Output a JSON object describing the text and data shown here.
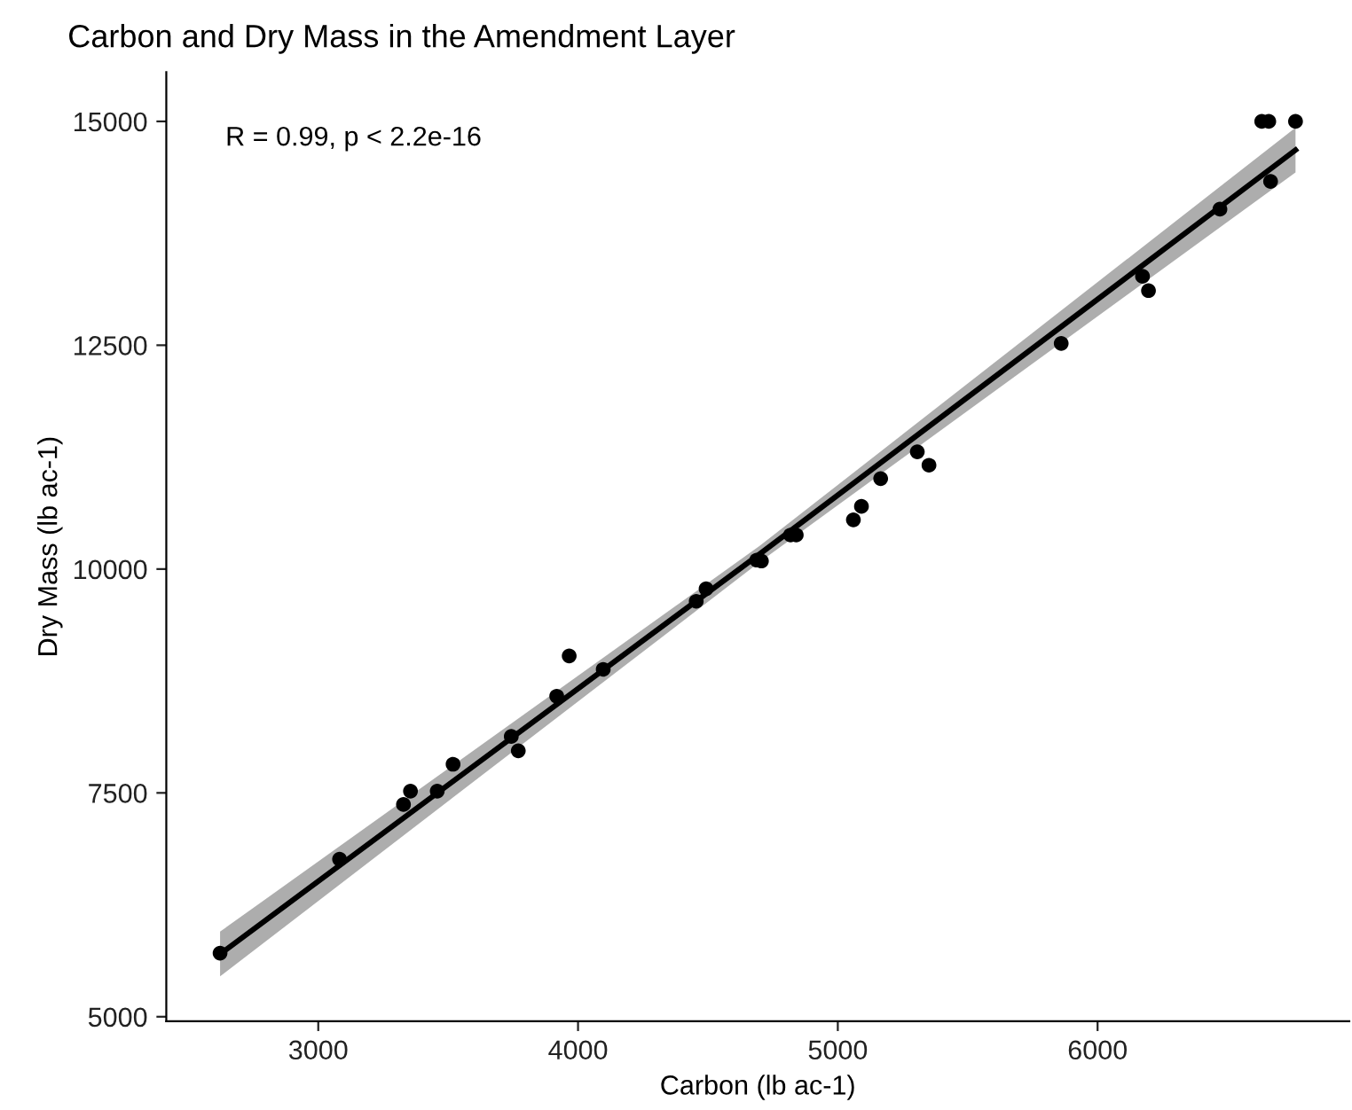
{
  "chart_data": {
    "type": "scatter",
    "title": "Carbon and Dry Mass in the Amendment Layer",
    "xlabel": "Carbon (lb ac-1)",
    "ylabel": "Dry Mass (lb ac-1)",
    "annotations": [
      "R = 0.99, p < 2.2e-16"
    ],
    "series": [
      {
        "color": "#000000",
        "marker": "circle",
        "x": [
          2622,
          3082,
          3328,
          3355,
          3458,
          3519,
          3770,
          3743,
          3918,
          3966,
          4097,
          4455,
          4493,
          4688,
          4706,
          4818,
          4840,
          5060,
          5091,
          5165,
          5306,
          5351,
          5860,
          6173,
          6196,
          6471,
          6666,
          6632,
          6659,
          6762
        ],
        "values": [
          5710,
          6760,
          7370,
          7520,
          7520,
          7820,
          7970,
          8130,
          8580,
          9030,
          8880,
          9640,
          9780,
          10100,
          10090,
          10380,
          10380,
          10550,
          10700,
          11010,
          11310,
          11160,
          12520,
          13270,
          13110,
          14020,
          14330,
          15000,
          15000,
          15000
        ]
      },
      {
        "type": "line",
        "color": "#000000",
        "x": [
          2622,
          4700,
          6762
        ],
        "values": [
          5700,
          10170,
          14680
        ],
        "lower": [
          5450,
          10080,
          14430
        ],
        "upper": [
          5950,
          10260,
          14930
        ]
      }
    ],
    "xlim": [
      2415,
      6969
    ],
    "ylim": [
      4950,
      15550
    ],
    "xticks": [
      3000,
      4000,
      5000,
      6000
    ],
    "yticks": [
      5000,
      7500,
      10000,
      12500,
      15000
    ],
    "grid": false,
    "legend": false
  }
}
